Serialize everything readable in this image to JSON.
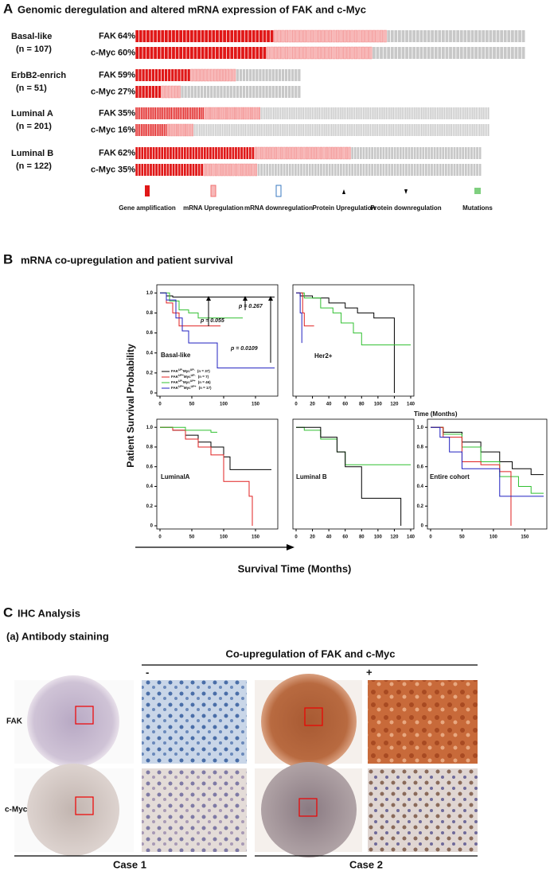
{
  "panelA": {
    "letter": "A",
    "title": "Genomic deregulation and altered mRNA expression of FAK and c-Myc",
    "groups": [
      {
        "name": "Basal-like",
        "n": 107,
        "n_label": "(n = 107)",
        "rows": [
          {
            "gene": "FAK",
            "pct": 64,
            "pct_label": "64%"
          },
          {
            "gene": "c-Myc",
            "pct": 60,
            "pct_label": "60%"
          }
        ]
      },
      {
        "name": "ErbB2-enrich",
        "n": 51,
        "n_label": "(n = 51)",
        "rows": [
          {
            "gene": "FAK",
            "pct": 59,
            "pct_label": "59%"
          },
          {
            "gene": "c-Myc",
            "pct": 27,
            "pct_label": "27%"
          }
        ]
      },
      {
        "name": "Luminal A",
        "n": 201,
        "n_label": "(n = 201)",
        "rows": [
          {
            "gene": "FAK",
            "pct": 35,
            "pct_label": "35%"
          },
          {
            "gene": "c-Myc",
            "pct": 16,
            "pct_label": "16%"
          }
        ]
      },
      {
        "name": "Luminal B",
        "n": 122,
        "n_label": "(n = 122)",
        "rows": [
          {
            "gene": "FAK",
            "pct": 62,
            "pct_label": "62%"
          },
          {
            "gene": "c-Myc",
            "pct": 35,
            "pct_label": "35%"
          }
        ]
      }
    ],
    "legend": [
      "Gene amplification",
      "mRNA Upregulation",
      "mRNA downregulation",
      "Protein Upregulation",
      "Protein downregulation",
      "Mutations"
    ]
  },
  "panelB": {
    "letter": "B",
    "title": "mRNA co-upregulation  and patient survival",
    "ylabel": "Patient Survival Probability",
    "xlabel": "Survival Time (Months)",
    "time_note": "Time (Months)",
    "p_values": [
      "p = 0.267",
      "p = 0.055",
      "p = 0.0109"
    ],
    "legend": [
      {
        "color": "#000000",
        "gene1": "FAK",
        "sup1": "UP-",
        "gene2": "Myc",
        "sup2": "UP-",
        "n": "(n = 37)"
      },
      {
        "color": "#e02020",
        "gene1": "FAK",
        "sup1": "UP+",
        "gene2": "Myc",
        "sup2": "UP-",
        "n": "(n = 7)"
      },
      {
        "color": "#30c030",
        "gene1": "FAK",
        "sup1": "UP-",
        "gene2": "Myc",
        "sup2": "UP+",
        "n": "(n = 46)"
      },
      {
        "color": "#2020c0",
        "gene1": "FAK",
        "sup1": "UP+",
        "gene2": "Myc",
        "sup2": "UP+",
        "n": "(n = 17)"
      }
    ],
    "plots": [
      {
        "name": "Basal-like",
        "xlim": [
          0,
          180
        ],
        "ylim": [
          0,
          1.05
        ],
        "xticks": [
          0,
          50,
          100,
          150
        ],
        "yticks": [
          0,
          0.2,
          0.4,
          0.6,
          0.8,
          {
            "value": 1,
            "label": "1.0"
          }
        ],
        "curves": [
          {
            "color": "#000000",
            "x": [
              0,
              10,
              20,
              180
            ],
            "y": [
              1,
              0.97,
              0.96,
              0.96
            ]
          },
          {
            "color": "#e02020",
            "x": [
              0,
              10,
              20,
              30,
              95
            ],
            "y": [
              1,
              0.9,
              0.8,
              0.67,
              0.67
            ]
          },
          {
            "color": "#30c030",
            "x": [
              0,
              15,
              30,
              45,
              60,
              130
            ],
            "y": [
              1,
              0.92,
              0.83,
              0.8,
              0.75,
              0.75
            ]
          },
          {
            "color": "#2020c0",
            "x": [
              0,
              10,
              25,
              35,
              45,
              90,
              180
            ],
            "y": [
              1,
              0.93,
              0.75,
              0.62,
              0.5,
              0.25,
              0.25
            ]
          }
        ]
      },
      {
        "name": "Her2+",
        "xlim": [
          0,
          140
        ],
        "ylim": [
          0,
          1.05
        ],
        "xticks": [
          0,
          20,
          40,
          60,
          80,
          100,
          120,
          140
        ],
        "yticks": [],
        "curves": [
          {
            "color": "#000000",
            "x": [
              0,
              5,
              20,
              40,
              60,
              75,
              95,
              120,
              120
            ],
            "y": [
              1,
              0.97,
              0.95,
              0.9,
              0.85,
              0.8,
              0.75,
              0.75,
              0
            ]
          },
          {
            "color": "#30c030",
            "x": [
              0,
              10,
              30,
              45,
              55,
              70,
              80,
              140
            ],
            "y": [
              1,
              0.95,
              0.85,
              0.8,
              0.7,
              0.6,
              0.48,
              0.48
            ]
          },
          {
            "color": "#e02020",
            "x": [
              0,
              8,
              10,
              22
            ],
            "y": [
              1,
              0.8,
              0.67,
              0.67
            ]
          },
          {
            "color": "#2020c0",
            "x": [
              0,
              5,
              7
            ],
            "y": [
              1,
              0.8,
              0.5
            ]
          }
        ]
      },
      {
        "name": "LuminalA",
        "xlim": [
          0,
          180
        ],
        "ylim": [
          0,
          1.05
        ],
        "xticks": [
          0,
          50,
          100,
          150
        ],
        "yticks": [
          0,
          0.2,
          0.4,
          0.6,
          0.8,
          {
            "value": 1,
            "label": "1.0"
          }
        ],
        "curves": [
          {
            "color": "#000000",
            "x": [
              0,
              20,
              40,
              60,
              80,
              100,
              110,
              175
            ],
            "y": [
              1,
              0.97,
              0.92,
              0.85,
              0.8,
              0.7,
              0.57,
              0.57
            ]
          },
          {
            "color": "#e02020",
            "x": [
              0,
              20,
              40,
              60,
              80,
              100,
              125,
              140,
              145
            ],
            "y": [
              1,
              0.97,
              0.88,
              0.8,
              0.72,
              0.45,
              0.45,
              0.3,
              0
            ]
          },
          {
            "color": "#30c030",
            "x": [
              0,
              40,
              80,
              90
            ],
            "y": [
              1,
              0.97,
              0.95,
              0.95
            ]
          }
        ]
      },
      {
        "name": "Luminal B",
        "xlim": [
          0,
          140
        ],
        "ylim": [
          0,
          1.05
        ],
        "xticks": [
          0,
          20,
          40,
          60,
          80,
          100,
          120,
          140
        ],
        "yticks": [],
        "curves": [
          {
            "color": "#30c030",
            "x": [
              0,
              10,
              30,
              50,
              60,
              140
            ],
            "y": [
              1,
              0.97,
              0.88,
              0.75,
              0.62,
              0.62
            ]
          },
          {
            "color": "#000000",
            "x": [
              0,
              10,
              30,
              50,
              60,
              80,
              100,
              125,
              128
            ],
            "y": [
              1,
              1,
              0.9,
              0.75,
              0.6,
              0.28,
              0.28,
              0.28,
              0
            ]
          }
        ]
      },
      {
        "name": "Entire cohort",
        "xlim": [
          0,
          180
        ],
        "ylim": [
          0,
          1.05
        ],
        "xticks": [
          0,
          50,
          100,
          150
        ],
        "yticks": [
          0,
          0.2,
          0.4,
          0.6,
          0.8,
          {
            "value": 1,
            "label": "1.0"
          }
        ],
        "curves": [
          {
            "color": "#000000",
            "x": [
              0,
              20,
              50,
              80,
              110,
              130,
              160,
              180
            ],
            "y": [
              1,
              0.95,
              0.85,
              0.75,
              0.65,
              0.58,
              0.52,
              0.52
            ]
          },
          {
            "color": "#30c030",
            "x": [
              0,
              20,
              50,
              80,
              110,
              140,
              160,
              180
            ],
            "y": [
              1,
              0.93,
              0.8,
              0.65,
              0.5,
              0.4,
              0.33,
              0.33
            ]
          },
          {
            "color": "#e02020",
            "x": [
              0,
              20,
              50,
              80,
              110,
              125,
              128
            ],
            "y": [
              1,
              0.9,
              0.65,
              0.62,
              0.55,
              0.55,
              0
            ]
          },
          {
            "color": "#2020c0",
            "x": [
              0,
              15,
              30,
              50,
              90,
              110,
              180
            ],
            "y": [
              1,
              0.9,
              0.75,
              0.58,
              0.58,
              0.3,
              0.3
            ]
          }
        ]
      }
    ]
  },
  "panelC": {
    "letter": "C",
    "title": "IHC Analysis",
    "subtitle": "(a)  Antibody staining",
    "header": "Co-upregulation of FAK and c-Myc",
    "minus": "-",
    "plus": "+",
    "rows": [
      "FAK",
      "c-Myc"
    ],
    "cases": [
      "Case 1",
      "Case 2"
    ]
  }
}
